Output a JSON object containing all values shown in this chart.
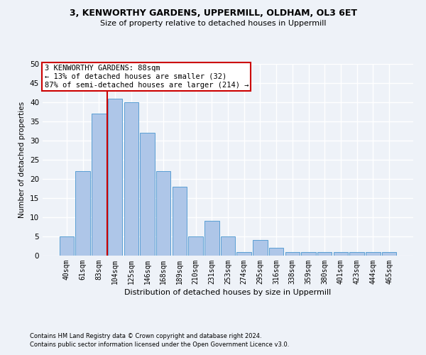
{
  "title1": "3, KENWORTHY GARDENS, UPPERMILL, OLDHAM, OL3 6ET",
  "title2": "Size of property relative to detached houses in Uppermill",
  "xlabel": "Distribution of detached houses by size in Uppermill",
  "ylabel": "Number of detached properties",
  "categories": [
    "40sqm",
    "61sqm",
    "83sqm",
    "104sqm",
    "125sqm",
    "146sqm",
    "168sqm",
    "189sqm",
    "210sqm",
    "231sqm",
    "253sqm",
    "274sqm",
    "295sqm",
    "316sqm",
    "338sqm",
    "359sqm",
    "380sqm",
    "401sqm",
    "423sqm",
    "444sqm",
    "465sqm"
  ],
  "values": [
    5,
    22,
    37,
    41,
    40,
    32,
    22,
    18,
    5,
    9,
    5,
    1,
    4,
    2,
    1,
    1,
    1,
    1,
    1,
    1,
    1
  ],
  "bar_color": "#aec6e8",
  "bar_edge_color": "#5a9fd4",
  "property_line_index": 2,
  "annotation_text": "3 KENWORTHY GARDENS: 88sqm\n← 13% of detached houses are smaller (32)\n87% of semi-detached houses are larger (214) →",
  "annotation_box_color": "#ffffff",
  "annotation_box_edge": "#cc0000",
  "property_line_color": "#cc0000",
  "footnote1": "Contains HM Land Registry data © Crown copyright and database right 2024.",
  "footnote2": "Contains public sector information licensed under the Open Government Licence v3.0.",
  "ylim": [
    0,
    50
  ],
  "yticks": [
    0,
    5,
    10,
    15,
    20,
    25,
    30,
    35,
    40,
    45,
    50
  ],
  "bg_color": "#eef2f8",
  "grid_color": "#ffffff",
  "title1_fontsize": 9,
  "title2_fontsize": 8,
  "xlabel_fontsize": 8,
  "ylabel_fontsize": 7.5,
  "tick_fontsize": 7,
  "footnote_fontsize": 6,
  "annot_fontsize": 7.5
}
